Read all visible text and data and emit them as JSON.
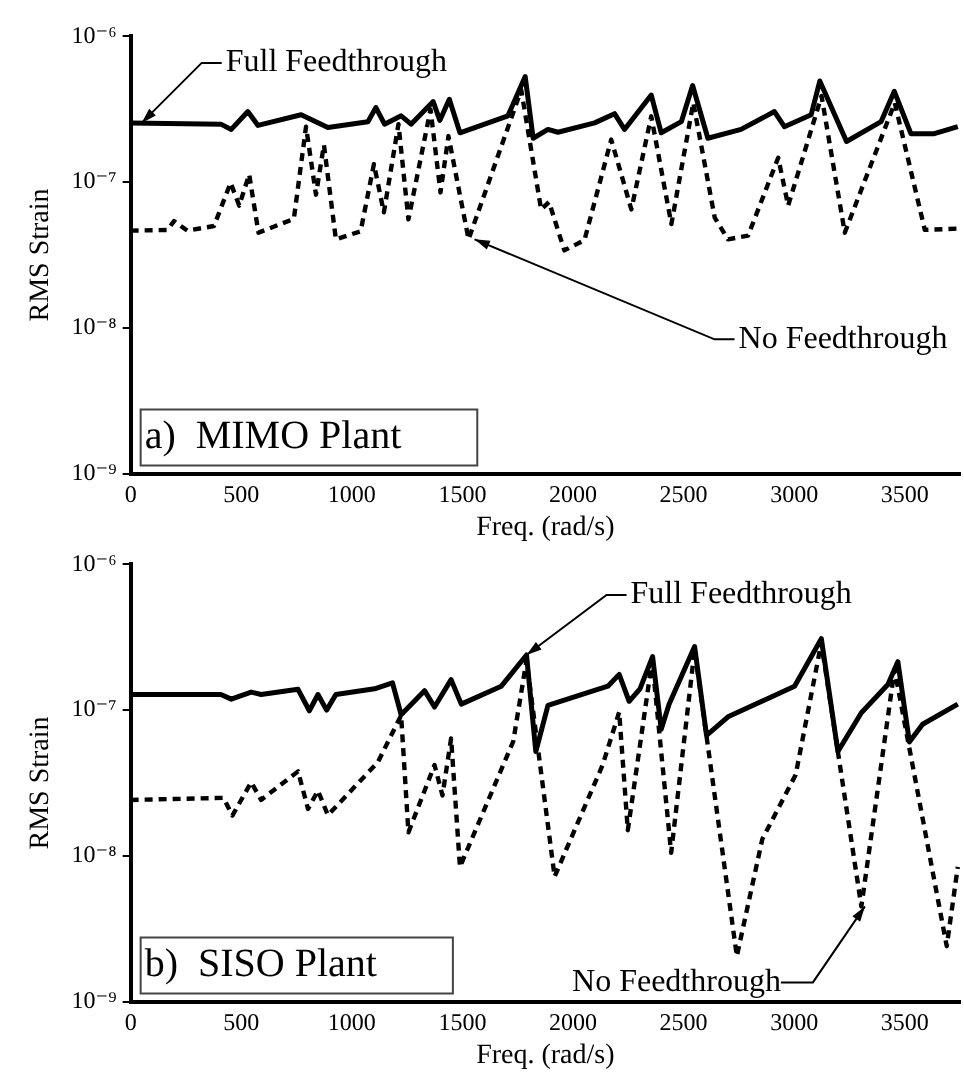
{
  "chart_data": [
    {
      "type": "line",
      "title": "a)  MIMO Plant",
      "xlabel": "Freq. (rad/s)",
      "ylabel": "RMS Strain",
      "log": "y",
      "grid": false,
      "legend": false,
      "marker": "none",
      "xlim": [
        0,
        3750
      ],
      "xticks": [
        0,
        500,
        1000,
        1500,
        2000,
        2500,
        3000,
        3500
      ],
      "ylim": [
        1e-09,
        1e-06
      ],
      "yticks": [
        {
          "value": 1e-09,
          "label": "10⁻⁹"
        },
        {
          "value": 1e-08,
          "label": "10⁻⁸"
        },
        {
          "value": 1e-07,
          "label": "10⁻⁷"
        },
        {
          "value": 1e-06,
          "label": "10⁻⁶"
        }
      ],
      "series": [
        {
          "color": "#000000",
          "line_style": "solid",
          "x": [
            0,
            408,
            455,
            530,
            576,
            771,
            892,
            1073,
            1109,
            1148,
            1223,
            1268,
            1368,
            1398,
            1441,
            1489,
            1706,
            1784,
            1820,
            1887,
            1932,
            2098,
            2188,
            2233,
            2354,
            2399,
            2490,
            2541,
            2610,
            2760,
            2911,
            2956,
            3077,
            3116,
            3237,
            3393,
            3453,
            3528,
            3634,
            3740
          ],
          "values": [
            2.55e-07,
            2.5e-07,
            2.3e-07,
            3.05e-07,
            2.45e-07,
            2.9e-07,
            2.37e-07,
            2.6e-07,
            3.25e-07,
            2.5e-07,
            2.85e-07,
            2.5e-07,
            3.57e-07,
            2.65e-07,
            3.7e-07,
            2.18e-07,
            2.85e-07,
            5.3e-07,
            2e-07,
            2.3e-07,
            2.2e-07,
            2.55e-07,
            2.95e-07,
            2.3e-07,
            3.96e-07,
            2.18e-07,
            2.6e-07,
            4.6e-07,
            2e-07,
            2.3e-07,
            3.05e-07,
            2.4e-07,
            2.9e-07,
            4.94e-07,
            1.9e-07,
            2.6e-07,
            4.2e-07,
            2.15e-07,
            2.15e-07,
            2.4e-07
          ]
        },
        {
          "color": "#000000",
          "line_style": "dashed",
          "x": [
            0,
            166,
            196,
            256,
            377,
            452,
            491,
            536,
            578,
            738,
            793,
            838,
            874,
            928,
            1040,
            1100,
            1145,
            1211,
            1256,
            1356,
            1401,
            1437,
            1528,
            1766,
            1856,
            1892,
            1961,
            2052,
            2173,
            2264,
            2354,
            2445,
            2544,
            2641,
            2701,
            2792,
            2928,
            2973,
            3124,
            3229,
            3455,
            3591,
            3740
          ],
          "values": [
            4.65e-08,
            4.7e-08,
            5.4e-08,
            4.65e-08,
            5e-08,
            9.9e-08,
            6.9e-08,
            1.13e-07,
            4.5e-08,
            5.6e-08,
            2.4e-07,
            8.2e-08,
            1.8e-07,
            4.05e-08,
            4.6e-08,
            1.33e-07,
            6.2e-08,
            2.5e-07,
            5.55e-08,
            3.15e-07,
            8.5e-08,
            2.07e-07,
            4.05e-08,
            4.3e-07,
            6.5e-08,
            7.3e-08,
            3.4e-08,
            4e-08,
            1.96e-07,
            6.5e-08,
            2.83e-07,
            5.15e-08,
            3.5e-07,
            5.7e-08,
            4.05e-08,
            4.3e-08,
            1.47e-07,
            6.9e-08,
            3.9e-07,
            4.5e-08,
            3.5e-07,
            4.7e-08,
            4.8e-08
          ]
        }
      ],
      "annotations": [
        {
          "text": "Full Feedthrough",
          "x": 50,
          "y": 2.55e-07
        },
        {
          "text": "No Feedthrough",
          "x": 1555,
          "y": 4.05e-08
        }
      ]
    },
    {
      "type": "line",
      "title": "b)  SISO Plant",
      "xlabel": "Freq. (rad/s)",
      "ylabel": "RMS Strain",
      "log": "y",
      "grid": false,
      "legend": false,
      "marker": "none",
      "xlim": [
        0,
        3750
      ],
      "xticks": [
        0,
        500,
        1000,
        1500,
        2000,
        2500,
        3000,
        3500
      ],
      "ylim": [
        1e-09,
        1e-06
      ],
      "yticks": [
        {
          "value": 1e-09,
          "label": "10⁻⁹"
        },
        {
          "value": 1e-08,
          "label": "10⁻⁸"
        },
        {
          "value": 1e-07,
          "label": "10⁻⁷"
        },
        {
          "value": 1e-06,
          "label": "10⁻⁶"
        }
      ],
      "series": [
        {
          "color": "#000000",
          "line_style": "solid",
          "x": [
            0,
            408,
            455,
            545,
            590,
            757,
            808,
            847,
            886,
            928,
            1103,
            1184,
            1223,
            1329,
            1374,
            1449,
            1495,
            1676,
            1790,
            1832,
            1887,
            2038,
            2158,
            2209,
            2254,
            2303,
            2360,
            2399,
            2435,
            2550,
            2604,
            2701,
            3002,
            3123,
            3198,
            3304,
            3424,
            3469,
            3521,
            3581,
            3740
          ],
          "values": [
            1.28e-07,
            1.28e-07,
            1.19e-07,
            1.33e-07,
            1.28e-07,
            1.39e-07,
            9.9e-08,
            1.28e-07,
            1e-07,
            1.28e-07,
            1.4e-07,
            1.54e-07,
            9.3e-08,
            1.36e-07,
            1.05e-07,
            1.62e-07,
            1.1e-07,
            1.46e-07,
            2.39e-07,
            5.2e-08,
            1.08e-07,
            1.28e-07,
            1.46e-07,
            1.76e-07,
            1.15e-07,
            1.4e-07,
            2.33e-07,
            7.4e-08,
            1.1e-07,
            2.73e-07,
            6.7e-08,
            9e-08,
            1.46e-07,
            3.09e-07,
            5.2e-08,
            9.6e-08,
            1.5e-07,
            2.15e-07,
            6.05e-08,
            8e-08,
            1.1e-07
          ]
        },
        {
          "color": "#000000",
          "line_style": "dashed",
          "x": [
            0,
            420,
            460,
            545,
            590,
            757,
            802,
            847,
            892,
            1118,
            1223,
            1256,
            1374,
            1410,
            1449,
            1489,
            1730,
            1790,
            1917,
            2134,
            2209,
            2248,
            2358,
            2444,
            2550,
            2741,
            2856,
            3007,
            3123,
            3304,
            3454,
            3690,
            3740
          ],
          "values": [
            2.42e-08,
            2.5e-08,
            1.89e-08,
            3.2e-08,
            2.42e-08,
            3.8e-08,
            2.1e-08,
            2.8e-08,
            1.9e-08,
            4.4e-08,
            9.2e-08,
            1.45e-08,
            4.2e-08,
            2.6e-08,
            6.4e-08,
            8.4e-09,
            6.1e-08,
            2.2e-07,
            7.2e-09,
            4.2e-08,
            9.7e-08,
            1.5e-08,
            2.2e-07,
            1.05e-08,
            2.6e-07,
            2.05e-09,
            1.3e-08,
            3.6e-08,
            2.9e-07,
            4.5e-09,
            1.9e-07,
            2.4e-09,
            8.4e-09
          ]
        }
      ],
      "annotations": [
        {
          "text": "Full Feedthrough",
          "x": 1790,
          "y": 2.39e-07
        },
        {
          "text": "No Feedthrough",
          "x": 3320,
          "y": 4.5e-09
        }
      ]
    }
  ]
}
